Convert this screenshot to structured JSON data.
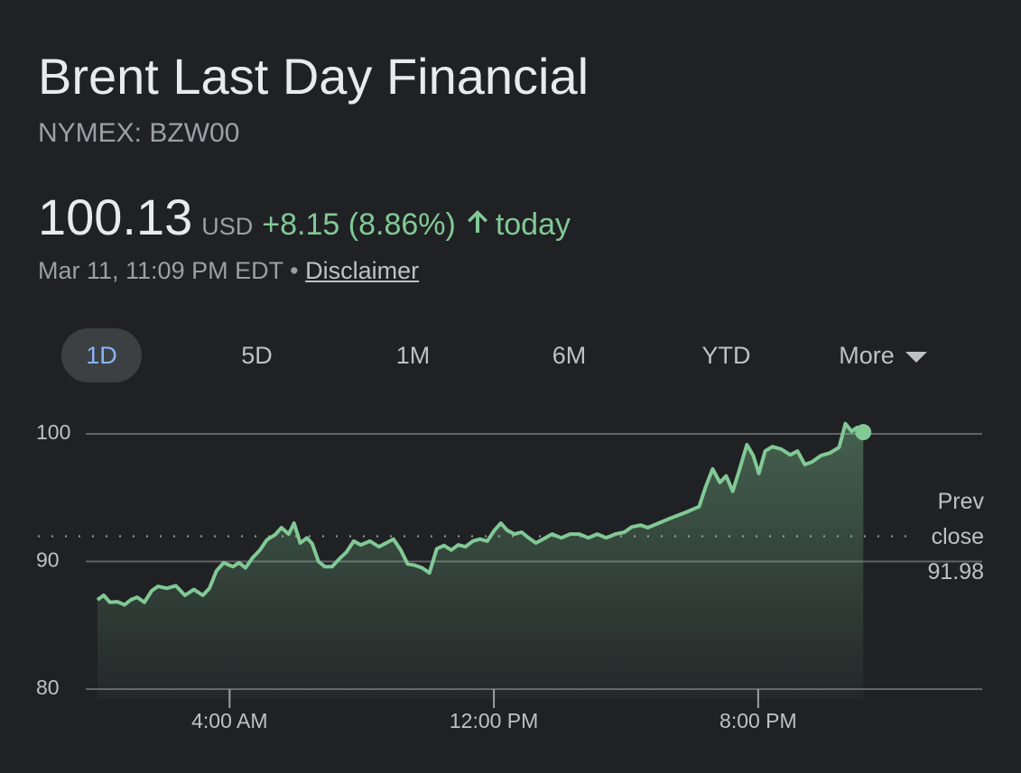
{
  "header": {
    "title": "Brent Last Day Financial",
    "ticker": "NYMEX: BZW00",
    "price": "100.13",
    "currency": "USD",
    "change": "+8.15 (8.86%)",
    "period": "today",
    "timestamp": "Mar 11, 11:09 PM EDT",
    "disclaimer": "Disclaimer"
  },
  "ranges": [
    "1D",
    "5D",
    "1M",
    "6M",
    "YTD",
    "More"
  ],
  "chart_data": {
    "type": "line",
    "color": "#81c995",
    "x": [
      0,
      0.19,
      0.38,
      0.6,
      0.82,
      1.01,
      1.2,
      1.42,
      1.64,
      1.83,
      2.1,
      2.37,
      2.65,
      2.92,
      3.19,
      3.39,
      3.6,
      3.82,
      4.1,
      4.29,
      4.48,
      4.7,
      4.92,
      5.13,
      5.38,
      5.57,
      5.79,
      5.95,
      6.14,
      6.34,
      6.5,
      6.69,
      6.88,
      7.1,
      7.32,
      7.54,
      7.76,
      7.97,
      8.25,
      8.52,
      8.74,
      8.96,
      9.18,
      9.39,
      9.61,
      9.83,
      10.05,
      10.27,
      10.49,
      10.71,
      10.92,
      11.14,
      11.36,
      11.58,
      11.8,
      12.02,
      12.21,
      12.4,
      12.62,
      12.84,
      13.05,
      13.27,
      13.49,
      13.76,
      14.04,
      14.31,
      14.58,
      14.86,
      15.13,
      15.4,
      15.68,
      15.95,
      16.17,
      16.44,
      16.66,
      17.26,
      17.81,
      18.21,
      18.41,
      18.62,
      18.84,
      19.03,
      19.23,
      19.44,
      19.66,
      19.85,
      20.02,
      20.21,
      20.43,
      20.7,
      20.97,
      21.19,
      21.41,
      21.63,
      21.9,
      22.17,
      22.45,
      22.64,
      22.83,
      22.99,
      23.18
    ],
    "values": [
      87.0,
      87.35,
      86.8,
      86.85,
      86.6,
      87.0,
      87.2,
      86.8,
      87.7,
      88.05,
      87.9,
      88.1,
      87.35,
      87.8,
      87.35,
      87.9,
      89.25,
      89.9,
      89.6,
      89.9,
      89.5,
      90.3,
      90.9,
      91.7,
      92.1,
      92.65,
      92.15,
      93.0,
      91.45,
      91.85,
      91.4,
      90.0,
      89.6,
      89.6,
      90.2,
      90.75,
      91.6,
      91.3,
      91.6,
      91.15,
      91.45,
      91.75,
      90.9,
      89.8,
      89.7,
      89.5,
      89.1,
      91.0,
      91.25,
      90.9,
      91.3,
      91.15,
      91.6,
      91.75,
      91.6,
      92.45,
      93.0,
      92.45,
      92.15,
      92.3,
      91.85,
      91.45,
      91.75,
      92.15,
      91.85,
      92.15,
      92.15,
      91.85,
      92.15,
      91.85,
      92.15,
      92.3,
      92.7,
      92.85,
      92.65,
      93.3,
      93.85,
      94.3,
      95.85,
      97.25,
      96.2,
      96.7,
      95.5,
      97.25,
      99.15,
      98.3,
      96.9,
      98.65,
      99.0,
      98.8,
      98.35,
      98.65,
      97.6,
      97.8,
      98.3,
      98.5,
      98.95,
      100.8,
      100.2,
      100.5,
      100.13
    ],
    "xlim": [
      -0.9,
      26.78
    ],
    "xticks": [
      {
        "value": 4,
        "label": "4:00 AM"
      },
      {
        "value": 12,
        "label": "12:00 PM"
      },
      {
        "value": 20,
        "label": "8:00 PM"
      }
    ],
    "ylim": [
      80,
      103
    ],
    "yticks": [
      80,
      90,
      100
    ],
    "grid": true,
    "prev_close": {
      "label": "Prev close",
      "value": 91.98
    }
  }
}
